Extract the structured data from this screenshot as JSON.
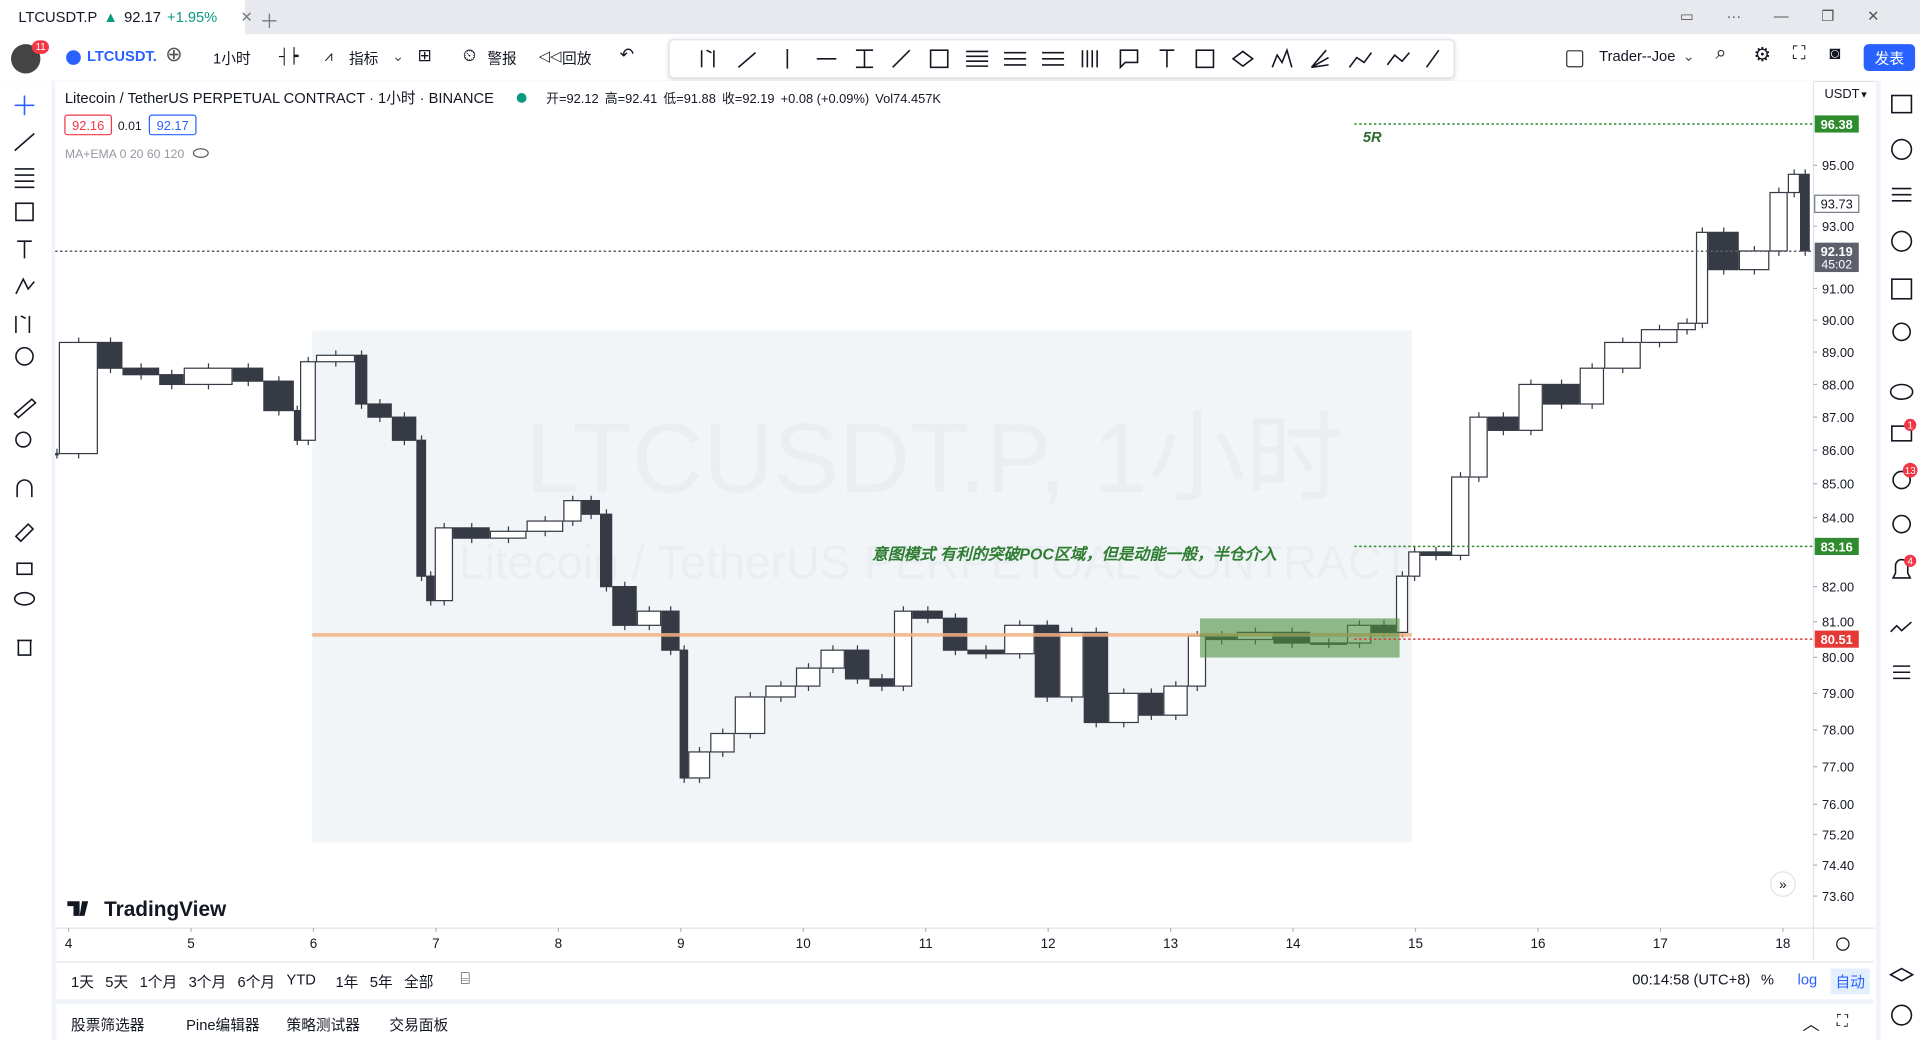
{
  "tab": {
    "symbol": "LTCUSDT.P",
    "price": "92.17",
    "change": "+1.95%"
  },
  "toolbar": {
    "badge": "11",
    "symbol": "LTCUSDT.",
    "interval": "1小时",
    "indicators": "指标",
    "alert": "警报",
    "replay": "回放",
    "user": "Trader--Joe",
    "publish": "发表"
  },
  "legend": {
    "title": "Litecoin / TetherUS PERPETUAL CONTRACT · 1小时 · BINANCE",
    "open": "开=92.12",
    "high": "高=92.41",
    "low": "低=91.88",
    "close": "收=92.19",
    "change": "+0.08 (+0.09%)",
    "volume": "Vol74.457K",
    "bid": "92.16",
    "spread": "0.01",
    "ask": "92.17",
    "indicator": "MA+EMA 0 20 60 120"
  },
  "currency": "USDT",
  "watermark": {
    "symbol": "LTCUSDT.P, 1小时",
    "name": "Litecoin / TetherUS PERPETUAL CONTRACT"
  },
  "logo": "TradingView",
  "chart_data": {
    "type": "candlestick",
    "x": [
      3.92,
      4.24,
      4.44,
      4.74,
      4.94,
      5.34,
      5.59,
      5.84,
      5.89,
      6.02,
      6.34,
      6.44,
      6.64,
      6.84,
      6.92,
      6.99,
      7.14,
      7.44,
      7.74,
      8.04,
      8.19,
      8.34,
      8.44,
      8.64,
      8.84,
      8.99,
      9.06,
      9.24,
      9.44,
      9.69,
      9.94,
      10.14,
      10.34,
      10.54,
      10.74,
      10.89,
      11.14,
      11.34,
      11.64,
      11.89,
      12.09,
      12.29,
      12.49,
      12.74,
      12.94,
      13.14,
      13.29,
      13.54,
      13.84,
      14.14,
      14.44,
      14.64,
      14.84,
      14.94,
      15.04,
      15.29,
      15.44,
      15.59,
      15.84,
      16.04,
      16.34,
      16.54,
      16.84,
      17.14,
      17.29,
      17.39,
      17.64,
      17.89,
      18.04,
      18.14,
      18.22
    ],
    "values": [
      85.9,
      89.3,
      88.5,
      88.3,
      88.0,
      88.5,
      88.1,
      87.2,
      86.3,
      88.7,
      88.9,
      87.4,
      87.0,
      86.3,
      82.3,
      81.6,
      83.7,
      83.4,
      83.6,
      83.9,
      84.5,
      84.1,
      82.0,
      80.9,
      81.3,
      80.2,
      76.7,
      77.4,
      77.9,
      78.9,
      79.2,
      79.7,
      80.2,
      79.4,
      79.2,
      81.3,
      81.1,
      80.2,
      80.1,
      80.9,
      78.9,
      80.7,
      78.2,
      79.0,
      78.4,
      79.2,
      80.6,
      80.5,
      80.7,
      80.4,
      80.4,
      80.9,
      80.7,
      82.3,
      83.0,
      82.9,
      85.2,
      87.0,
      86.6,
      88.0,
      87.4,
      88.5,
      89.3,
      89.7,
      89.9,
      92.8,
      91.6,
      92.2,
      94.1,
      94.7,
      92.2
    ],
    "up_color": "#ffffff",
    "down_color": "#363a45",
    "outline_color": "#363a45",
    "xlim": [
      3.89,
      18.25
    ],
    "xticks": [
      4,
      5,
      6,
      7,
      8,
      9,
      10,
      11,
      12,
      13,
      14,
      15,
      16,
      17,
      18
    ],
    "ylim": [
      72.78,
      97.76
    ],
    "log_scale": true,
    "grid": false,
    "yticks": [
      {
        "value": 73.6,
        "label": "73.60"
      },
      {
        "value": 74.4,
        "label": "74.40"
      },
      {
        "value": 75.2,
        "label": "75.20"
      },
      {
        "value": 76,
        "label": "76.00"
      },
      {
        "value": 77,
        "label": "77.00"
      },
      {
        "value": 78,
        "label": "78.00"
      },
      {
        "value": 79,
        "label": "79.00"
      },
      {
        "value": 80,
        "label": "80.00"
      },
      {
        "value": 81,
        "label": "81.00"
      },
      {
        "value": 82,
        "label": "82.00"
      },
      {
        "value": 84,
        "label": "84.00"
      },
      {
        "value": 85,
        "label": "85.00"
      },
      {
        "value": 86,
        "label": "86.00"
      },
      {
        "value": 87,
        "label": "87.00"
      },
      {
        "value": 88,
        "label": "88.00"
      },
      {
        "value": 89,
        "label": "89.00"
      },
      {
        "value": 90,
        "label": "90.00"
      },
      {
        "value": 91,
        "label": "91.00"
      },
      {
        "value": 93,
        "label": "93.00"
      },
      {
        "value": 95,
        "label": "95.00"
      }
    ],
    "levels": [
      {
        "value": 96.38,
        "color": "#2e8b2e",
        "from": 14.5,
        "line": true
      },
      {
        "value": 93.73,
        "color": "#ffffff",
        "line": false
      },
      {
        "value": 92.19,
        "color": "#5d606b",
        "from": 3.89,
        "line": true,
        "countdown": "45:02"
      },
      {
        "value": 83.16,
        "color": "#2e8b2e",
        "from": 14.5,
        "line": true
      },
      {
        "value": 80.51,
        "color": "#e53935",
        "from": 14.5,
        "line": true
      }
    ],
    "annotations": [
      "5R",
      "意图模式  有利的突破POC区域，但是动能一般，半仓介入"
    ]
  },
  "ranges": [
    "1天",
    "5天",
    "1个月",
    "3个月",
    "6个月",
    "YTD",
    "1年",
    "5年",
    "全部"
  ],
  "clock": "00:14:58 (UTC+8)",
  "scale_buttons": [
    "%",
    "log",
    "自动"
  ],
  "panels": [
    "股票筛选器",
    "Pine编辑器",
    "策略测试器",
    "交易面板"
  ],
  "notifications": [
    "1",
    "13",
    "4"
  ]
}
